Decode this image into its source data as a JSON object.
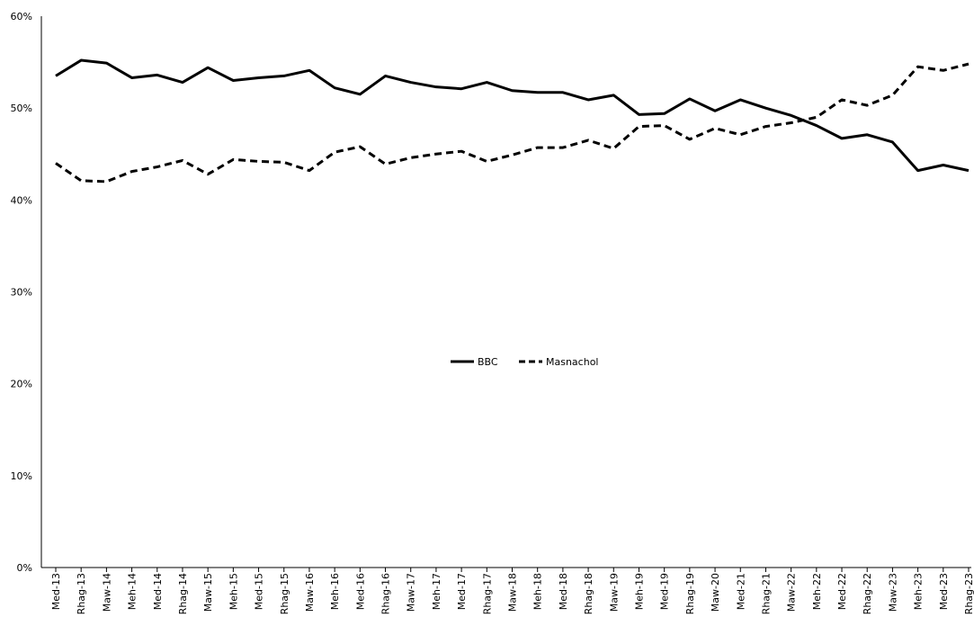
{
  "chart_data": {
    "type": "line",
    "title": "",
    "xlabel": "",
    "ylabel": "",
    "ylim": [
      0,
      60
    ],
    "y_unit": "%",
    "y_ticks": [
      0,
      10,
      20,
      30,
      40,
      50,
      60
    ],
    "y_tick_labels": [
      "0%",
      "10%",
      "20%",
      "30%",
      "40%",
      "50%",
      "60%"
    ],
    "grid": false,
    "legend_position": "center",
    "categories": [
      "Med-13",
      "Rhag-13",
      "Maw-14",
      "Meh-14",
      "Med-14",
      "Rhag-14",
      "Maw-15",
      "Meh-15",
      "Med-15",
      "Rhag-15",
      "Maw-16",
      "Meh-16",
      "Med-16",
      "Rhag-16",
      "Maw-17",
      "Meh-17",
      "Med-17",
      "Rhag-17",
      "Maw-18",
      "Meh-18",
      "Med-18",
      "Rhag-18",
      "Maw-19",
      "Meh-19",
      "Med-19",
      "Rhag-19",
      "Maw-20",
      "Med-21",
      "Rhag-21",
      "Maw-22",
      "Meh-22",
      "Med-22",
      "Rhag-22",
      "Maw-23",
      "Meh-23",
      "Med-23",
      "Rhag-23"
    ],
    "series": [
      {
        "name": "BBC",
        "style": "solid",
        "color": "#000000",
        "values": [
          53.5,
          55.2,
          54.9,
          53.3,
          53.6,
          52.8,
          54.4,
          53.0,
          53.3,
          53.5,
          54.1,
          52.2,
          51.5,
          53.5,
          52.8,
          52.3,
          52.1,
          52.8,
          51.9,
          51.7,
          51.7,
          50.9,
          51.4,
          49.3,
          49.4,
          51.0,
          49.7,
          50.9,
          50.0,
          49.2,
          48.1,
          46.7,
          47.1,
          46.3,
          43.2,
          43.8,
          43.2
        ]
      },
      {
        "name": "Masnachol",
        "style": "dashed",
        "color": "#000000",
        "values": [
          44.0,
          42.1,
          42.0,
          43.1,
          43.6,
          44.3,
          42.8,
          44.4,
          44.2,
          44.1,
          43.2,
          45.2,
          45.8,
          43.9,
          44.6,
          45.0,
          45.3,
          44.2,
          44.9,
          45.7,
          45.7,
          46.5,
          45.6,
          48.0,
          48.1,
          46.6,
          47.8,
          47.1,
          48.0,
          48.4,
          49.0,
          50.9,
          50.3,
          51.4,
          54.5,
          54.1,
          54.8
        ]
      }
    ]
  }
}
